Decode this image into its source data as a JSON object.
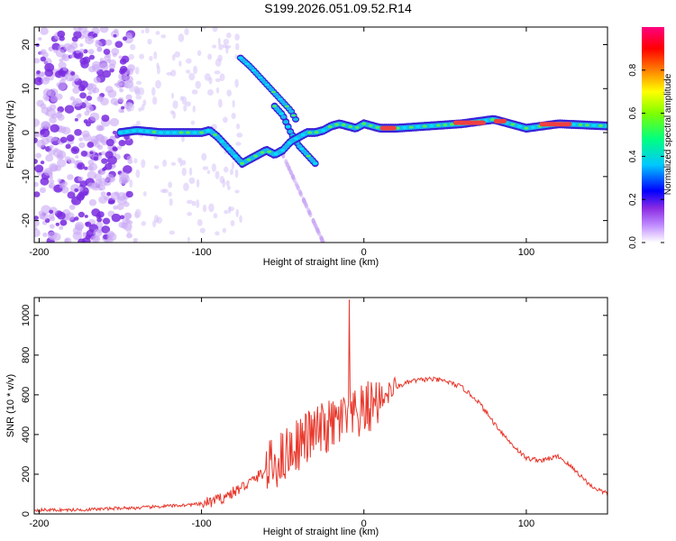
{
  "title": "S199.2026.051.09.52.R14",
  "colors": {
    "axis": "#000000",
    "snr_line": "#e8382c",
    "spectral_low": "#e9dcfa",
    "spectral_mid": "#7a2ce0",
    "spectral_ridge": "#2a6cf0"
  },
  "chart_data": [
    {
      "type": "heatmap",
      "name": "spectrogram",
      "title": "S199.2026.051.09.52.R14",
      "xlabel": "Height of straight line (km)",
      "ylabel": "Frequency (Hz)",
      "xlim": [
        -203,
        150
      ],
      "ylim": [
        -25,
        24
      ],
      "xticks": [
        -200,
        -100,
        0,
        100
      ],
      "yticks": [
        20,
        10,
        0,
        -10,
        -20
      ],
      "colorbar": {
        "label": "Normalized spectral amplitude",
        "range": [
          0,
          1
        ],
        "ticks": [
          0.0,
          0.2,
          0.4,
          0.6,
          0.8
        ],
        "tick_labels": [
          "0.0",
          "0.2",
          "0.4",
          "0.6",
          "0.8"
        ],
        "colormap": [
          "#ffffff",
          "#9b30ff",
          "#0000ff",
          "#00ffff",
          "#00ff00",
          "#ffff00",
          "#ff8000",
          "#ff0000",
          "#ff00aa"
        ]
      },
      "ridges": [
        {
          "name": "main-ridge",
          "x": [
            -150,
            -140,
            -125,
            -110,
            -100,
            -95,
            -90,
            -85,
            -80,
            -75,
            -70,
            -65,
            -60,
            -55,
            -50,
            -45,
            -40,
            -35,
            -30,
            -25,
            -20,
            -15,
            -10,
            -5,
            0,
            10,
            20,
            40,
            60,
            80,
            90,
            100,
            120,
            150
          ],
          "y": [
            0,
            0.5,
            0,
            0,
            0,
            0.5,
            -1,
            -3,
            -5,
            -7,
            -6,
            -5,
            -4,
            -5,
            -4,
            -2,
            -1,
            0,
            0,
            0.5,
            1.5,
            2,
            1.5,
            1,
            2,
            1,
            1,
            1.5,
            2,
            3,
            2,
            1,
            2,
            1.5
          ]
        },
        {
          "name": "secondary-branch",
          "x": [
            -55,
            -50,
            -45,
            -40,
            -35,
            -30
          ],
          "y": [
            6,
            4,
            0,
            -3,
            -5,
            -7
          ]
        },
        {
          "name": "upper-streak",
          "x": [
            -76,
            -70,
            -65,
            -60,
            -55,
            -50,
            -45,
            -42
          ],
          "y": [
            17,
            15,
            13,
            11,
            9,
            7,
            5,
            3
          ]
        }
      ]
    },
    {
      "type": "line",
      "name": "snr",
      "xlabel": "Height of straight line (km)",
      "ylabel": "SNR (10 * v/v)",
      "xlim": [
        -203,
        150
      ],
      "ylim": [
        0,
        1090
      ],
      "xticks": [
        -200,
        -100,
        0,
        100
      ],
      "yticks": [
        0,
        200,
        400,
        600,
        800,
        1000
      ],
      "series": [
        {
          "name": "SNR",
          "x": [
            -203,
            -180,
            -160,
            -150,
            -140,
            -130,
            -120,
            -110,
            -100,
            -90,
            -80,
            -70,
            -60,
            -50,
            -40,
            -30,
            -20,
            -15,
            -10,
            -5,
            0,
            5,
            10,
            20,
            30,
            40,
            50,
            60,
            70,
            80,
            90,
            100,
            110,
            120,
            130,
            140,
            150
          ],
          "y": [
            20,
            20,
            25,
            30,
            30,
            35,
            40,
            45,
            50,
            70,
            110,
            160,
            220,
            290,
            360,
            410,
            440,
            470,
            480,
            490,
            520,
            550,
            580,
            640,
            670,
            680,
            670,
            640,
            570,
            460,
            360,
            280,
            270,
            290,
            220,
            140,
            100
          ]
        }
      ],
      "spike": {
        "x": -9,
        "y": 1080
      }
    }
  ]
}
